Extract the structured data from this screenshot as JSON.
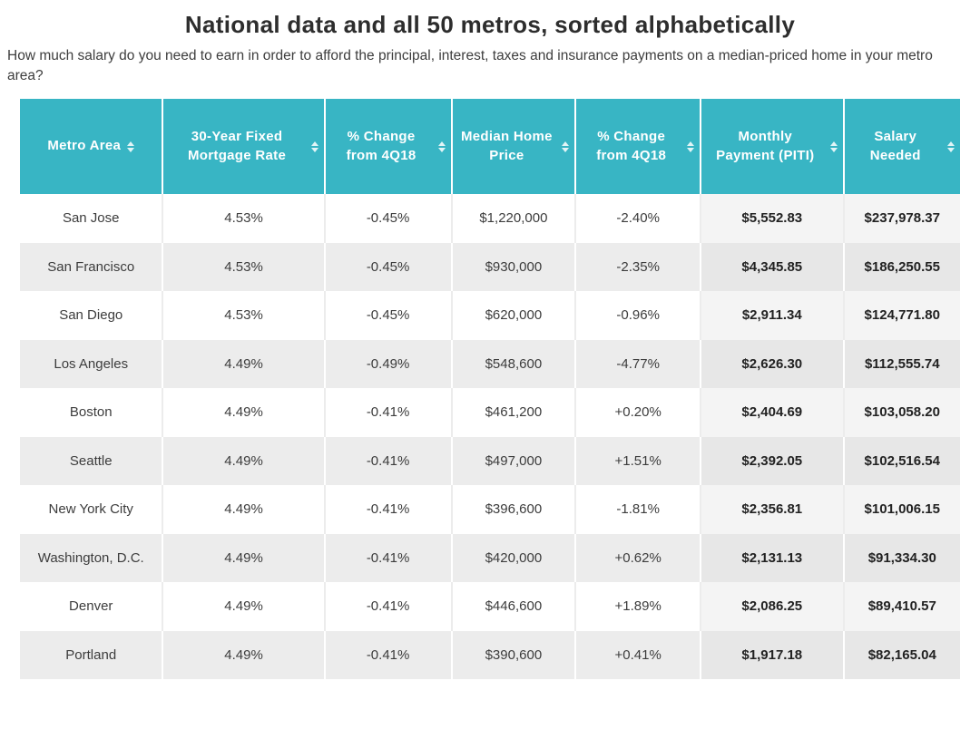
{
  "chart_data": {
    "type": "table",
    "title": "National data and all 50 metros, sorted alphabetically",
    "subtitle": "How much salary do you need to earn in order to afford the principal, interest, taxes and insurance payments on a median-priced home in your metro area?",
    "columns": [
      {
        "key": "metro-area",
        "label": "Metro Area",
        "sortable": true
      },
      {
        "key": "mortgage-rate",
        "label": "30-Year Fixed Mortgage Rate",
        "sortable": true
      },
      {
        "key": "rate-change-4q18",
        "label": "% Change from 4Q18",
        "sortable": true
      },
      {
        "key": "median-home-price",
        "label": "Median Home Price",
        "sortable": true
      },
      {
        "key": "price-change-4q18",
        "label": "% Change from 4Q18",
        "sortable": true
      },
      {
        "key": "monthly-payment",
        "label": "Monthly Payment (PITI)",
        "sortable": true
      },
      {
        "key": "salary-needed",
        "label": "Salary Needed",
        "sortable": true
      }
    ],
    "rows": [
      [
        "San Jose",
        "4.53%",
        "-0.45%",
        "$1,220,000",
        "-2.40%",
        "$5,552.83",
        "$237,978.37"
      ],
      [
        "San Francisco",
        "4.53%",
        "-0.45%",
        "$930,000",
        "-2.35%",
        "$4,345.85",
        "$186,250.55"
      ],
      [
        "San Diego",
        "4.53%",
        "-0.45%",
        "$620,000",
        "-0.96%",
        "$2,911.34",
        "$124,771.80"
      ],
      [
        "Los Angeles",
        "4.49%",
        "-0.49%",
        "$548,600",
        "-4.77%",
        "$2,626.30",
        "$112,555.74"
      ],
      [
        "Boston",
        "4.49%",
        "-0.41%",
        "$461,200",
        "+0.20%",
        "$2,404.69",
        "$103,058.20"
      ],
      [
        "Seattle",
        "4.49%",
        "-0.41%",
        "$497,000",
        "+1.51%",
        "$2,392.05",
        "$102,516.54"
      ],
      [
        "New York City",
        "4.49%",
        "-0.41%",
        "$396,600",
        "-1.81%",
        "$2,356.81",
        "$101,006.15"
      ],
      [
        "Washington, D.C.",
        "4.49%",
        "-0.41%",
        "$420,000",
        "+0.62%",
        "$2,131.13",
        "$91,334.30"
      ],
      [
        "Denver",
        "4.49%",
        "-0.41%",
        "$446,600",
        "+1.89%",
        "$2,086.25",
        "$89,410.57"
      ],
      [
        "Portland",
        "4.49%",
        "-0.41%",
        "$390,600",
        "+0.41%",
        "$1,917.18",
        "$82,165.04"
      ]
    ],
    "layout": {
      "legend": "none",
      "grid": "row-striping",
      "sort_icons": "up-down-arrows"
    }
  },
  "colors": {
    "header_bg": "#38b5c4",
    "header_text": "#ffffff",
    "row_alt_bg": "#ececec",
    "title_color": "#2d2d2d",
    "body_text": "#3c3c3c"
  }
}
